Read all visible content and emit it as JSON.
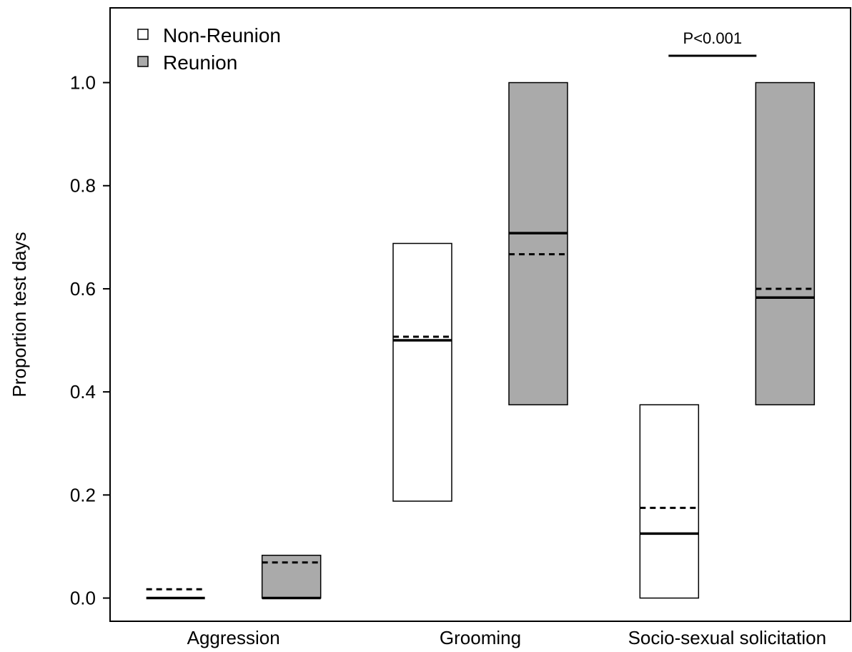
{
  "chart_data": {
    "type": "box",
    "ylabel": "Proportion test days",
    "ylim": [
      -0.045,
      1.145
    ],
    "yticks": [
      "0.0",
      "0.2",
      "0.4",
      "0.6",
      "0.8",
      "1.0"
    ],
    "categories": [
      "Aggression",
      "Grooming",
      "Socio-sexual solicitation"
    ],
    "legend": {
      "position": "top-left",
      "entries": [
        {
          "label": "Non-Reunion",
          "color": "#ffffff"
        },
        {
          "label": "Reunion",
          "color": "#aaaaaa"
        }
      ]
    },
    "series": [
      {
        "name": "Non-Reunion",
        "color": "#ffffff",
        "boxes": [
          {
            "category": "Aggression",
            "q1": 0.0,
            "q3": 0.0,
            "median": 0.0,
            "mean": 0.017
          },
          {
            "category": "Grooming",
            "q1": 0.188,
            "q3": 0.688,
            "median": 0.5,
            "mean": 0.507
          },
          {
            "category": "Socio-sexual solicitation",
            "q1": 0.0,
            "q3": 0.375,
            "median": 0.125,
            "mean": 0.175
          }
        ]
      },
      {
        "name": "Reunion",
        "color": "#aaaaaa",
        "boxes": [
          {
            "category": "Aggression",
            "q1": 0.0,
            "q3": 0.083,
            "median": 0.0,
            "mean": 0.069
          },
          {
            "category": "Grooming",
            "q1": 0.375,
            "q3": 1.0,
            "median": 0.708,
            "mean": 0.667
          },
          {
            "category": "Socio-sexual solicitation",
            "q1": 0.375,
            "q3": 1.0,
            "median": 0.583,
            "mean": 0.6
          }
        ]
      }
    ],
    "annotations": [
      {
        "text": "P<0.001",
        "category": "Socio-sexual solicitation",
        "y": 1.052
      }
    ],
    "median_line": "solid",
    "mean_line": "dashed"
  }
}
